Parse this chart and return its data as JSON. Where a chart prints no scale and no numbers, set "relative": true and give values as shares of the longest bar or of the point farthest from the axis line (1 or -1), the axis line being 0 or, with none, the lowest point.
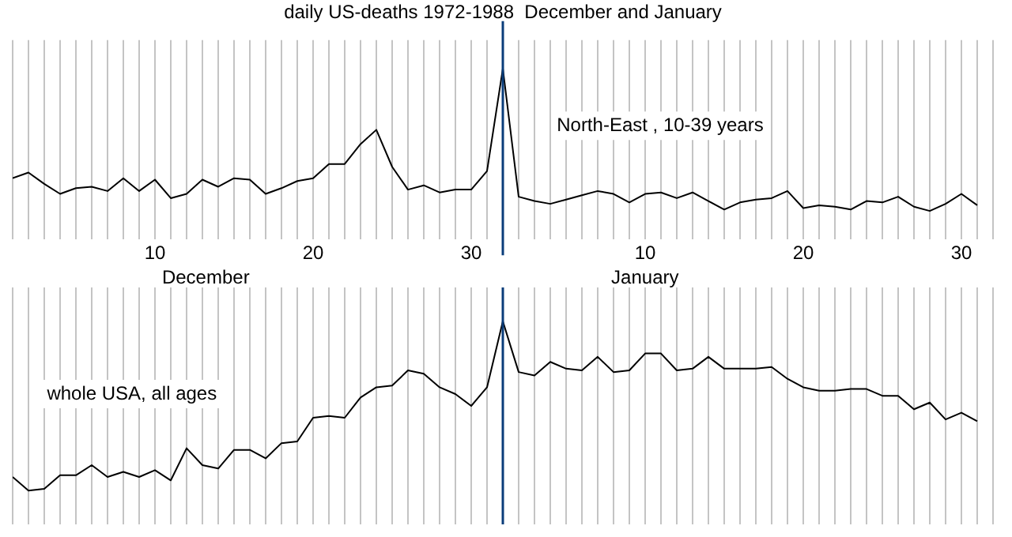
{
  "chart_data": [
    {
      "type": "line",
      "title": "daily US-deaths 1972-1988  December and January",
      "subtitle": "North-East , 10-39 years",
      "relative": true,
      "color": "#000000",
      "marker": "none",
      "grid": "x",
      "tick_labels": "x",
      "legend": false,
      "x": [
        "1987-12-01",
        "1987-12-02",
        "1987-12-03",
        "1987-12-04",
        "1987-12-05",
        "1987-12-06",
        "1987-12-07",
        "1987-12-08",
        "1987-12-09",
        "1987-12-10",
        "1987-12-11",
        "1987-12-12",
        "1987-12-13",
        "1987-12-14",
        "1987-12-15",
        "1987-12-16",
        "1987-12-17",
        "1987-12-18",
        "1987-12-19",
        "1987-12-20",
        "1987-12-21",
        "1987-12-22",
        "1987-12-23",
        "1987-12-24",
        "1987-12-25",
        "1987-12-26",
        "1987-12-27",
        "1987-12-28",
        "1987-12-29",
        "1987-12-30",
        "1987-12-31",
        "1988-01-01",
        "1988-01-02",
        "1988-01-03",
        "1988-01-04",
        "1988-01-05",
        "1988-01-06",
        "1988-01-07",
        "1988-01-08",
        "1988-01-09",
        "1988-01-10",
        "1988-01-11",
        "1988-01-12",
        "1988-01-13",
        "1988-01-14",
        "1988-01-15",
        "1988-01-16",
        "1988-01-17",
        "1988-01-18",
        "1988-01-19",
        "1988-01-20",
        "1988-01-21",
        "1988-01-22",
        "1988-01-23",
        "1988-01-24",
        "1988-01-25",
        "1988-01-26",
        "1988-01-27",
        "1988-01-28",
        "1988-01-29",
        "1988-01-30",
        "1988-01-31"
      ],
      "values": [
        0.23,
        0.27,
        0.19,
        0.12,
        0.16,
        0.17,
        0.14,
        0.23,
        0.14,
        0.22,
        0.09,
        0.12,
        0.22,
        0.17,
        0.23,
        0.22,
        0.12,
        0.16,
        0.21,
        0.23,
        0.33,
        0.33,
        0.47,
        0.57,
        0.31,
        0.15,
        0.18,
        0.13,
        0.15,
        0.15,
        0.28,
        1,
        0.1,
        0.07,
        0.05,
        0.08,
        0.11,
        0.14,
        0.12,
        0.06,
        0.12,
        0.13,
        0.09,
        0.13,
        0.07,
        0.01,
        0.06,
        0.08,
        0.09,
        0.14,
        0.02,
        0.04,
        0.03,
        0.01,
        0.07,
        0.06,
        0.1,
        0.03,
        0,
        0.05,
        0.12,
        0.04
      ],
      "xlim": [
        "1987-12-01",
        "1988-02-01"
      ],
      "xticks": [
        {
          "value": "1987-12-01",
          "label": null
        },
        {
          "value": "1987-12-02",
          "label": null
        },
        {
          "value": "1987-12-03",
          "label": null
        },
        {
          "value": "1987-12-04",
          "label": null
        },
        {
          "value": "1987-12-05",
          "label": null
        },
        {
          "value": "1987-12-06",
          "label": null
        },
        {
          "value": "1987-12-07",
          "label": null
        },
        {
          "value": "1987-12-08",
          "label": null
        },
        {
          "value": "1987-12-09",
          "label": null
        },
        {
          "value": "1987-12-10",
          "label": "10"
        },
        {
          "value": "1987-12-11",
          "label": null
        },
        {
          "value": "1987-12-12",
          "label": null
        },
        {
          "value": "1987-12-13",
          "label": null
        },
        {
          "value": "1987-12-14",
          "label": null
        },
        {
          "value": "1987-12-15",
          "label": null
        },
        {
          "value": "1987-12-16",
          "label": null
        },
        {
          "value": "1987-12-17",
          "label": null
        },
        {
          "value": "1987-12-18",
          "label": null
        },
        {
          "value": "1987-12-19",
          "label": null
        },
        {
          "value": "1987-12-20",
          "label": "20"
        },
        {
          "value": "1987-12-21",
          "label": null
        },
        {
          "value": "1987-12-22",
          "label": null
        },
        {
          "value": "1987-12-23",
          "label": null
        },
        {
          "value": "1987-12-24",
          "label": null
        },
        {
          "value": "1987-12-25",
          "label": null
        },
        {
          "value": "1987-12-26",
          "label": null
        },
        {
          "value": "1987-12-27",
          "label": null
        },
        {
          "value": "1987-12-28",
          "label": null
        },
        {
          "value": "1987-12-29",
          "label": null
        },
        {
          "value": "1987-12-30",
          "label": "30"
        },
        {
          "value": "1987-12-31",
          "label": null
        },
        {
          "value": "1988-01-01",
          "label": null
        },
        {
          "value": "1988-01-02",
          "label": null
        },
        {
          "value": "1988-01-03",
          "label": null
        },
        {
          "value": "1988-01-04",
          "label": null
        },
        {
          "value": "1988-01-05",
          "label": null
        },
        {
          "value": "1988-01-06",
          "label": null
        },
        {
          "value": "1988-01-07",
          "label": null
        },
        {
          "value": "1988-01-08",
          "label": null
        },
        {
          "value": "1988-01-09",
          "label": null
        },
        {
          "value": "1988-01-10",
          "label": "10"
        },
        {
          "value": "1988-01-11",
          "label": null
        },
        {
          "value": "1988-01-12",
          "label": null
        },
        {
          "value": "1988-01-13",
          "label": null
        },
        {
          "value": "1988-01-14",
          "label": null
        },
        {
          "value": "1988-01-15",
          "label": null
        },
        {
          "value": "1988-01-16",
          "label": null
        },
        {
          "value": "1988-01-17",
          "label": null
        },
        {
          "value": "1988-01-18",
          "label": null
        },
        {
          "value": "1988-01-19",
          "label": null
        },
        {
          "value": "1988-01-20",
          "label": "20"
        },
        {
          "value": "1988-01-21",
          "label": null
        },
        {
          "value": "1988-01-22",
          "label": null
        },
        {
          "value": "1988-01-23",
          "label": null
        },
        {
          "value": "1988-01-24",
          "label": null
        },
        {
          "value": "1988-01-25",
          "label": null
        },
        {
          "value": "1988-01-26",
          "label": null
        },
        {
          "value": "1988-01-27",
          "label": null
        },
        {
          "value": "1988-01-28",
          "label": null
        },
        {
          "value": "1988-01-29",
          "label": null
        },
        {
          "value": "1988-01-30",
          "label": "30"
        },
        {
          "value": "1988-01-31",
          "label": null
        },
        {
          "value": "1988-02-01",
          "label": null
        }
      ],
      "ref_lines": [
        {
          "axis": "x",
          "value": "1988-01-01",
          "color": "#0a3d7a"
        }
      ],
      "annotations": [
        "December",
        "January"
      ]
    },
    {
      "type": "line",
      "subtitle": "whole USA, all ages",
      "relative": true,
      "color": "#000000",
      "marker": "none",
      "grid": "x",
      "tick_labels": false,
      "legend": false,
      "x": [
        "1987-12-01",
        "1987-12-02",
        "1987-12-03",
        "1987-12-04",
        "1987-12-05",
        "1987-12-06",
        "1987-12-07",
        "1987-12-08",
        "1987-12-09",
        "1987-12-10",
        "1987-12-11",
        "1987-12-12",
        "1987-12-13",
        "1987-12-14",
        "1987-12-15",
        "1987-12-16",
        "1987-12-17",
        "1987-12-18",
        "1987-12-19",
        "1987-12-20",
        "1987-12-21",
        "1987-12-22",
        "1987-12-23",
        "1987-12-24",
        "1987-12-25",
        "1987-12-26",
        "1987-12-27",
        "1987-12-28",
        "1987-12-29",
        "1987-12-30",
        "1987-12-31",
        "1988-01-01",
        "1988-01-02",
        "1988-01-03",
        "1988-01-04",
        "1988-01-05",
        "1988-01-06",
        "1988-01-07",
        "1988-01-08",
        "1988-01-09",
        "1988-01-10",
        "1988-01-11",
        "1988-01-12",
        "1988-01-13",
        "1988-01-14",
        "1988-01-15",
        "1988-01-16",
        "1988-01-17",
        "1988-01-18",
        "1988-01-19",
        "1988-01-20",
        "1988-01-21",
        "1988-01-22",
        "1988-01-23",
        "1988-01-24",
        "1988-01-25",
        "1988-01-26",
        "1988-01-27",
        "1988-01-28",
        "1988-01-29",
        "1988-01-30",
        "1988-01-31"
      ],
      "values": [
        0.08,
        0,
        0.01,
        0.09,
        0.09,
        0.15,
        0.08,
        0.11,
        0.08,
        0.12,
        0.06,
        0.25,
        0.15,
        0.13,
        0.24,
        0.24,
        0.19,
        0.28,
        0.29,
        0.43,
        0.44,
        0.43,
        0.55,
        0.61,
        0.62,
        0.71,
        0.69,
        0.61,
        0.57,
        0.5,
        0.61,
        1,
        0.7,
        0.68,
        0.76,
        0.72,
        0.71,
        0.79,
        0.7,
        0.71,
        0.81,
        0.81,
        0.71,
        0.72,
        0.79,
        0.72,
        0.72,
        0.72,
        0.73,
        0.66,
        0.61,
        0.59,
        0.59,
        0.6,
        0.6,
        0.56,
        0.56,
        0.48,
        0.52,
        0.42,
        0.46,
        0.41
      ],
      "xlim": [
        "1987-12-01",
        "1988-02-01"
      ],
      "xticks": [
        {
          "value": "1987-12-01",
          "label": null
        },
        {
          "value": "1987-12-02",
          "label": null
        },
        {
          "value": "1987-12-03",
          "label": null
        },
        {
          "value": "1987-12-04",
          "label": null
        },
        {
          "value": "1987-12-05",
          "label": null
        },
        {
          "value": "1987-12-06",
          "label": null
        },
        {
          "value": "1987-12-07",
          "label": null
        },
        {
          "value": "1987-12-08",
          "label": null
        },
        {
          "value": "1987-12-09",
          "label": null
        },
        {
          "value": "1987-12-10",
          "label": null
        },
        {
          "value": "1987-12-11",
          "label": null
        },
        {
          "value": "1987-12-12",
          "label": null
        },
        {
          "value": "1987-12-13",
          "label": null
        },
        {
          "value": "1987-12-14",
          "label": null
        },
        {
          "value": "1987-12-15",
          "label": null
        },
        {
          "value": "1987-12-16",
          "label": null
        },
        {
          "value": "1987-12-17",
          "label": null
        },
        {
          "value": "1987-12-18",
          "label": null
        },
        {
          "value": "1987-12-19",
          "label": null
        },
        {
          "value": "1987-12-20",
          "label": null
        },
        {
          "value": "1987-12-21",
          "label": null
        },
        {
          "value": "1987-12-22",
          "label": null
        },
        {
          "value": "1987-12-23",
          "label": null
        },
        {
          "value": "1987-12-24",
          "label": null
        },
        {
          "value": "1987-12-25",
          "label": null
        },
        {
          "value": "1987-12-26",
          "label": null
        },
        {
          "value": "1987-12-27",
          "label": null
        },
        {
          "value": "1987-12-28",
          "label": null
        },
        {
          "value": "1987-12-29",
          "label": null
        },
        {
          "value": "1987-12-30",
          "label": null
        },
        {
          "value": "1987-12-31",
          "label": null
        },
        {
          "value": "1988-01-01",
          "label": null
        },
        {
          "value": "1988-01-02",
          "label": null
        },
        {
          "value": "1988-01-03",
          "label": null
        },
        {
          "value": "1988-01-04",
          "label": null
        },
        {
          "value": "1988-01-05",
          "label": null
        },
        {
          "value": "1988-01-06",
          "label": null
        },
        {
          "value": "1988-01-07",
          "label": null
        },
        {
          "value": "1988-01-08",
          "label": null
        },
        {
          "value": "1988-01-09",
          "label": null
        },
        {
          "value": "1988-01-10",
          "label": null
        },
        {
          "value": "1988-01-11",
          "label": null
        },
        {
          "value": "1988-01-12",
          "label": null
        },
        {
          "value": "1988-01-13",
          "label": null
        },
        {
          "value": "1988-01-14",
          "label": null
        },
        {
          "value": "1988-01-15",
          "label": null
        },
        {
          "value": "1988-01-16",
          "label": null
        },
        {
          "value": "1988-01-17",
          "label": null
        },
        {
          "value": "1988-01-18",
          "label": null
        },
        {
          "value": "1988-01-19",
          "label": null
        },
        {
          "value": "1988-01-20",
          "label": null
        },
        {
          "value": "1988-01-21",
          "label": null
        },
        {
          "value": "1988-01-22",
          "label": null
        },
        {
          "value": "1988-01-23",
          "label": null
        },
        {
          "value": "1988-01-24",
          "label": null
        },
        {
          "value": "1988-01-25",
          "label": null
        },
        {
          "value": "1988-01-26",
          "label": null
        },
        {
          "value": "1988-01-27",
          "label": null
        },
        {
          "value": "1988-01-28",
          "label": null
        },
        {
          "value": "1988-01-29",
          "label": null
        },
        {
          "value": "1988-01-30",
          "label": null
        },
        {
          "value": "1988-01-31",
          "label": null
        },
        {
          "value": "1988-02-01",
          "label": null
        }
      ],
      "ref_lines": [
        {
          "axis": "x",
          "value": "1988-01-01",
          "color": "#0a3d7a"
        }
      ]
    }
  ]
}
